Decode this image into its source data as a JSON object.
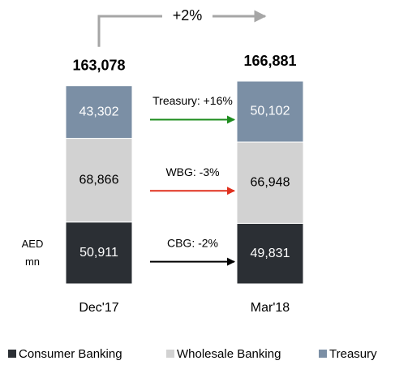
{
  "chart_data": {
    "type": "bar",
    "stacked": true,
    "categories": [
      "Dec'17",
      "Mar'18"
    ],
    "series": [
      {
        "name": "Consumer Banking",
        "color": "#2b2f34",
        "values": [
          50911,
          49831
        ],
        "value_labels": [
          "50,911",
          "49,831"
        ]
      },
      {
        "name": "Wholesale Banking",
        "color": "#d2d2d2",
        "values": [
          68866,
          66948
        ],
        "value_labels": [
          "68,866",
          "66,948"
        ]
      },
      {
        "name": "Treasury",
        "color": "#7b8fa5",
        "values": [
          43302,
          50102
        ],
        "value_labels": [
          "43,302",
          "50,102"
        ]
      }
    ],
    "totals": [
      163078,
      166881
    ],
    "total_labels": [
      "163,078",
      "166,881"
    ],
    "y_label": "AED mn",
    "change_label": "+2%",
    "arrows": [
      {
        "label": "CBG: -2%",
        "color": "#000000"
      },
      {
        "label": "WBG: -3%",
        "color": "#e0301e"
      },
      {
        "label": "Treasury: +16%",
        "color": "#1e8c1e"
      }
    ],
    "legend": true
  }
}
